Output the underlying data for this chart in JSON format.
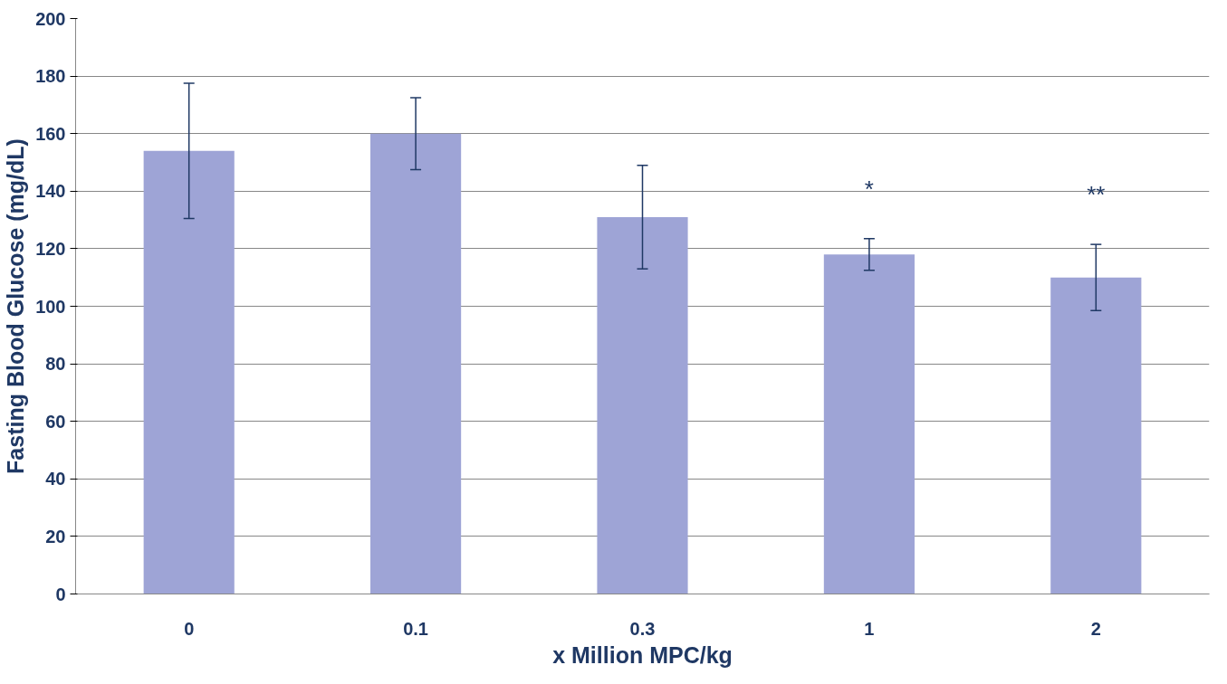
{
  "chart_data": {
    "type": "bar",
    "xlabel": "x Million MPC/kg",
    "ylabel": "Fasting Blood Glucose (mg/dL)",
    "categories": [
      "0",
      "0.1",
      "0.3",
      "1",
      "2"
    ],
    "values": [
      154,
      160,
      131,
      118,
      110
    ],
    "errors": [
      23.5,
      12.5,
      18,
      5.5,
      11.5
    ],
    "color": "#9ea4d6",
    "ylim": [
      0,
      200
    ],
    "yticks": [
      0,
      20,
      40,
      60,
      80,
      100,
      120,
      140,
      160,
      180,
      200
    ],
    "grid": "y",
    "annotations": [
      "*",
      "**"
    ]
  }
}
